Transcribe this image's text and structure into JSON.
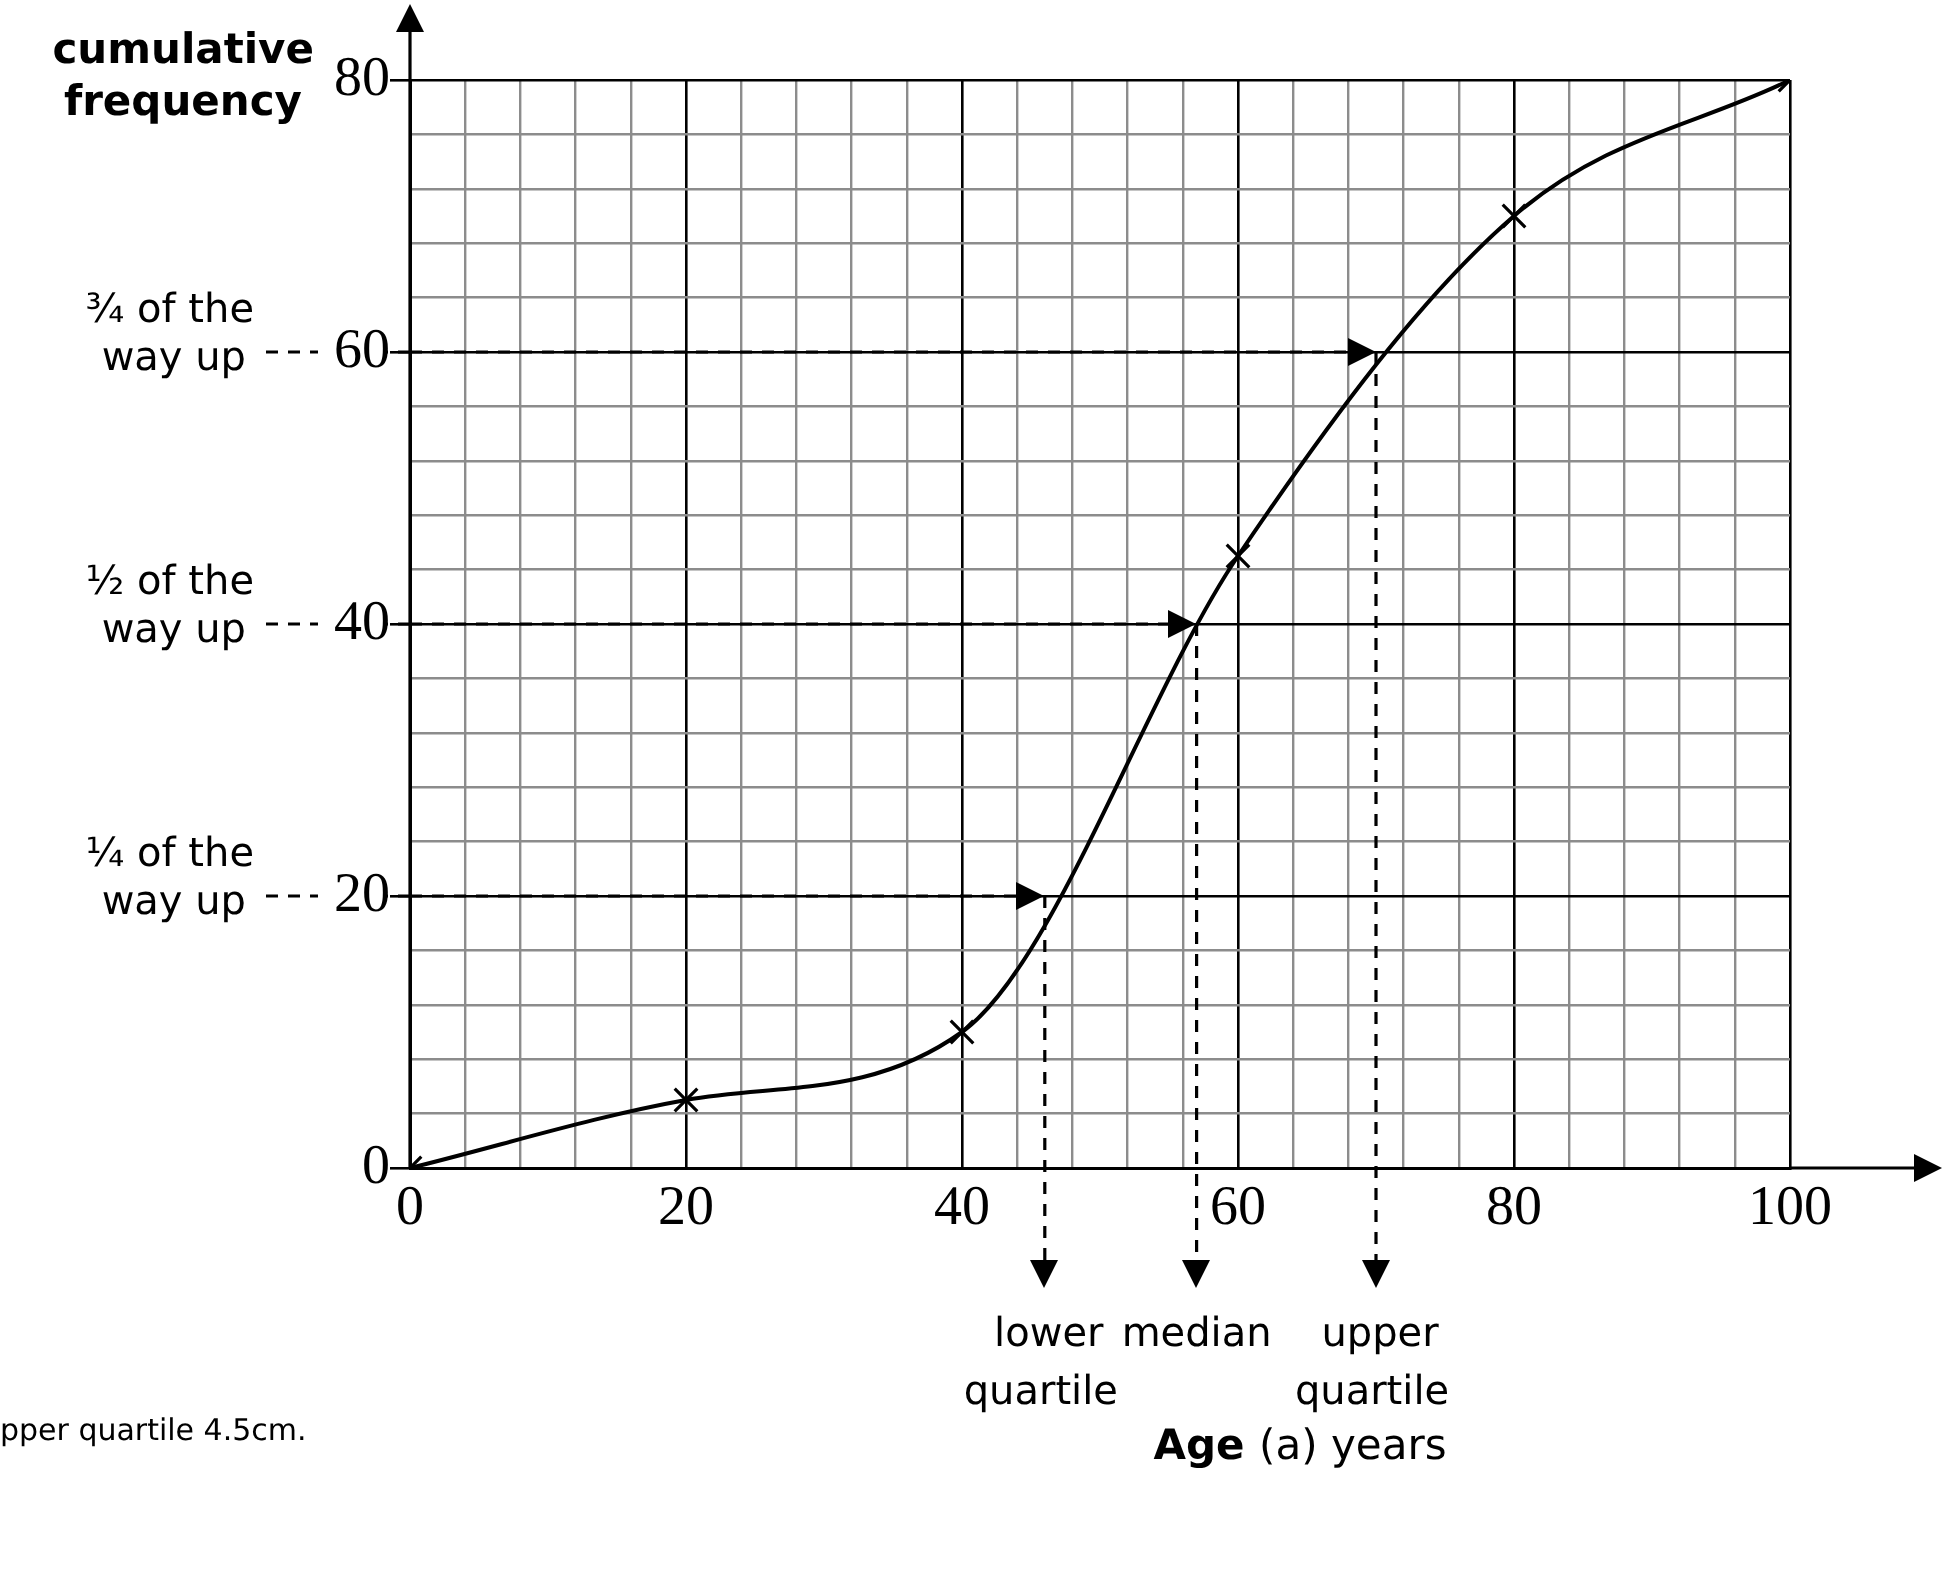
{
  "chart_data": {
    "type": "line",
    "ylabel": "cumulative frequency",
    "xlabel": "Age (a) years",
    "x": [
      0,
      20,
      40,
      60,
      80,
      100
    ],
    "series": [
      {
        "color": "#000000",
        "values": [
          0,
          5,
          10,
          45,
          70,
          80
        ]
      }
    ],
    "xlim": [
      0,
      100
    ],
    "ylim": [
      0,
      80
    ],
    "xticks": [
      0,
      {
        "value": 4,
        "label": null
      },
      {
        "value": 8,
        "label": null
      },
      {
        "value": 12,
        "label": null
      },
      {
        "value": 16,
        "label": null
      },
      20,
      {
        "value": 24,
        "label": null
      },
      {
        "value": 28,
        "label": null
      },
      {
        "value": 32,
        "label": null
      },
      {
        "value": 36,
        "label": null
      },
      40,
      {
        "value": 44,
        "label": null
      },
      {
        "value": 48,
        "label": null
      },
      {
        "value": 52,
        "label": null
      },
      {
        "value": 56,
        "label": null
      },
      60,
      {
        "value": 64,
        "label": null
      },
      {
        "value": 68,
        "label": null
      },
      {
        "value": 72,
        "label": null
      },
      {
        "value": 76,
        "label": null
      },
      80,
      {
        "value": 84,
        "label": null
      },
      {
        "value": 88,
        "label": null
      },
      {
        "value": 92,
        "label": null
      },
      {
        "value": 96,
        "label": null
      },
      100
    ],
    "yticks": [
      0,
      {
        "value": 4,
        "label": null
      },
      {
        "value": 8,
        "label": null
      },
      {
        "value": 12,
        "label": null
      },
      {
        "value": 16,
        "label": null
      },
      20,
      {
        "value": 24,
        "label": null
      },
      {
        "value": 28,
        "label": null
      },
      {
        "value": 32,
        "label": null
      },
      {
        "value": 36,
        "label": null
      },
      40,
      {
        "value": 44,
        "label": null
      },
      {
        "value": 48,
        "label": null
      },
      {
        "value": 52,
        "label": null
      },
      {
        "value": 56,
        "label": null
      },
      60,
      {
        "value": 64,
        "label": null
      },
      {
        "value": 68,
        "label": null
      },
      {
        "value": 72,
        "label": null
      },
      {
        "value": 76,
        "label": null
      },
      80
    ],
    "grid": true,
    "marker": "cross",
    "legend": false,
    "ref_lines": [
      {
        "axis": "y",
        "value": 20,
        "label": "¼ of the way up",
        "line_style": "dashed"
      },
      {
        "axis": "y",
        "value": 40,
        "label": "½ of the way up",
        "line_style": "dashed"
      },
      {
        "axis": "y",
        "value": 60,
        "label": "¾ of the way up",
        "line_style": "dashed"
      },
      {
        "axis": "x",
        "value": 46,
        "label": "lower quartile",
        "line_style": "dashed"
      },
      {
        "axis": "x",
        "value": 57,
        "label": "median",
        "line_style": "dashed"
      },
      {
        "axis": "x",
        "value": 70,
        "label": "upper quartile",
        "line_style": "dashed"
      }
    ],
    "annotations": [
      "pper quartile 4.5cm."
    ]
  }
}
